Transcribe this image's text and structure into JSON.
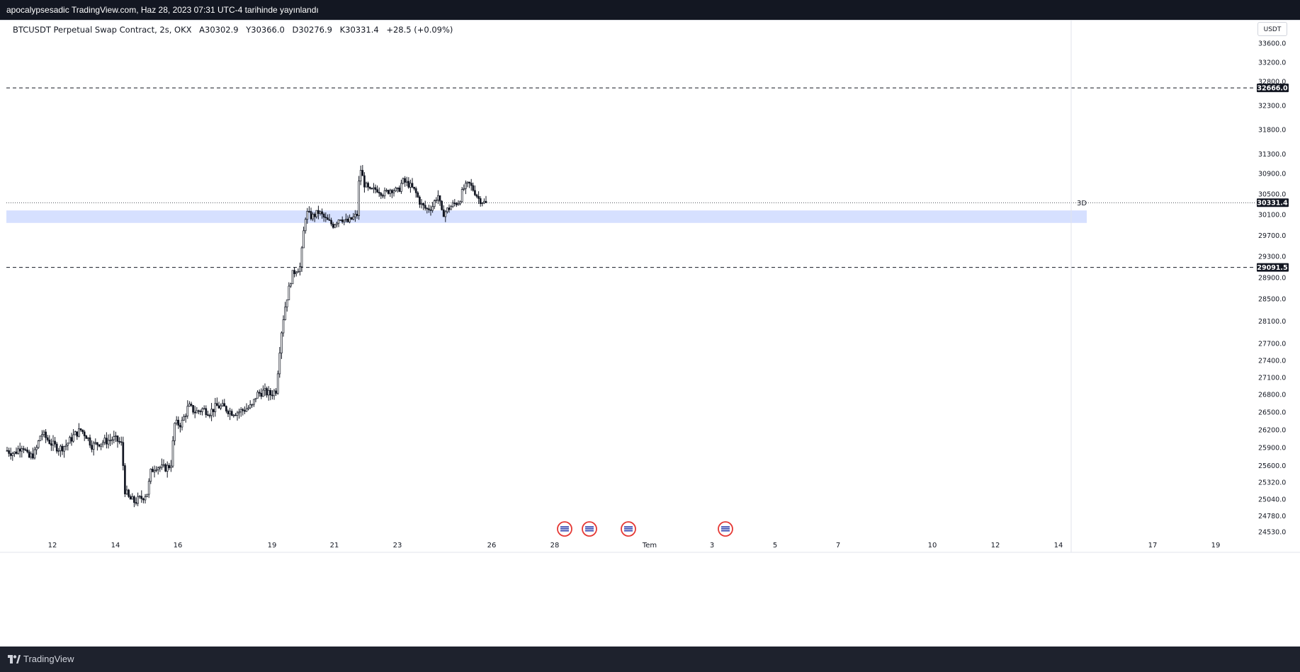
{
  "header": {
    "publisher_line": "apocalypsesadic TradingView.com, Haz 28, 2023 07:31 UTC-4 tarihinde yayınlandı"
  },
  "legend": {
    "symbol": "BTCUSDT Perpetual Swap Contract, 2s, OKX",
    "open": "A30302.9",
    "high": "Y30366.0",
    "low": "D30276.9",
    "close": "K30331.4",
    "change": "+28.5 (+0.09%)"
  },
  "currency_button": "USDT",
  "footer": {
    "brand": "TradingView"
  },
  "colors": {
    "background": "#ffffff",
    "candle": "#131722",
    "zone": "#d6e0ff",
    "level_line": "#131722",
    "dark_bar": "#131722",
    "event_icon": "#e53935"
  },
  "chart_data": {
    "type": "candlestick",
    "title": "",
    "xlabel": "",
    "ylabel": "",
    "ylim": [
      24400,
      33950
    ],
    "y_ticks": [
      "33600.0",
      "33200.0",
      "32800.0",
      "32300.0",
      "31800.0",
      "31300.0",
      "30900.0",
      "30500.0",
      "30100.0",
      "29700.0",
      "29300.0",
      "28900.0",
      "28500.0",
      "28100.0",
      "27700.0",
      "27400.0",
      "27100.0",
      "26800.0",
      "26500.0",
      "26200.0",
      "25900.0",
      "25600.0",
      "25320.0",
      "25040.0",
      "24780.0",
      "24530.0"
    ],
    "x_ticks": [
      "12",
      "14",
      "16",
      "19",
      "21",
      "23",
      "26",
      "28",
      "Tem",
      "3",
      "5",
      "7",
      "10",
      "12",
      "14",
      "17",
      "19"
    ],
    "horizontal_levels": [
      {
        "price": 32666.0,
        "label": "32666.0",
        "style": "dashed"
      },
      {
        "price": 29091.5,
        "label": "29091.5",
        "style": "dashed"
      }
    ],
    "last_price": {
      "price": 30331.4,
      "label": "30331.4",
      "style": "dotted"
    },
    "zone": {
      "top": 30180,
      "bottom": 29940,
      "label": "3D"
    },
    "event_markers": 4,
    "series_anchors": [
      [
        0,
        25850
      ],
      [
        10,
        25800
      ],
      [
        22,
        25950
      ],
      [
        30,
        25720
      ],
      [
        40,
        25820
      ],
      [
        48,
        26150
      ],
      [
        56,
        26050
      ],
      [
        64,
        25950
      ],
      [
        74,
        25880
      ],
      [
        84,
        25950
      ],
      [
        94,
        26100
      ],
      [
        104,
        26200
      ],
      [
        112,
        26100
      ],
      [
        120,
        25930
      ],
      [
        130,
        25980
      ],
      [
        140,
        26010
      ],
      [
        150,
        26050
      ],
      [
        158,
        26000
      ],
      [
        162,
        25940
      ],
      [
        166,
        25200
      ],
      [
        172,
        25050
      ],
      [
        180,
        25000
      ],
      [
        190,
        25060
      ],
      [
        198,
        25150
      ],
      [
        203,
        25500
      ],
      [
        210,
        25600
      ],
      [
        220,
        25550
      ],
      [
        228,
        25580
      ],
      [
        232,
        25650
      ],
      [
        236,
        26300
      ],
      [
        246,
        26300
      ],
      [
        256,
        26600
      ],
      [
        266,
        26500
      ],
      [
        276,
        26550
      ],
      [
        286,
        26500
      ],
      [
        296,
        26600
      ],
      [
        306,
        26580
      ],
      [
        316,
        26500
      ],
      [
        326,
        26500
      ],
      [
        336,
        26550
      ],
      [
        346,
        26600
      ],
      [
        352,
        26800
      ],
      [
        362,
        26850
      ],
      [
        372,
        26800
      ],
      [
        380,
        26880
      ],
      [
        384,
        27500
      ],
      [
        388,
        28000
      ],
      [
        393,
        28400
      ],
      [
        398,
        28700
      ],
      [
        402,
        28950
      ],
      [
        408,
        29050
      ],
      [
        414,
        29100
      ],
      [
        418,
        29700
      ],
      [
        422,
        30150
      ],
      [
        430,
        30050
      ],
      [
        440,
        30150
      ],
      [
        450,
        30000
      ],
      [
        460,
        29900
      ],
      [
        470,
        30050
      ],
      [
        480,
        29950
      ],
      [
        490,
        30050
      ],
      [
        494,
        30100
      ],
      [
        498,
        31050
      ],
      [
        504,
        30700
      ],
      [
        512,
        30550
      ],
      [
        522,
        30600
      ],
      [
        532,
        30500
      ],
      [
        542,
        30600
      ],
      [
        552,
        30550
      ],
      [
        558,
        30750
      ],
      [
        566,
        30700
      ],
      [
        576,
        30550
      ],
      [
        584,
        30300
      ],
      [
        592,
        30200
      ],
      [
        600,
        30250
      ],
      [
        608,
        30500
      ],
      [
        614,
        30100
      ],
      [
        622,
        30200
      ],
      [
        630,
        30300
      ],
      [
        638,
        30350
      ],
      [
        644,
        30600
      ],
      [
        652,
        30700
      ],
      [
        660,
        30550
      ],
      [
        666,
        30400
      ],
      [
        672,
        30350
      ],
      [
        677,
        30302
      ]
    ]
  }
}
